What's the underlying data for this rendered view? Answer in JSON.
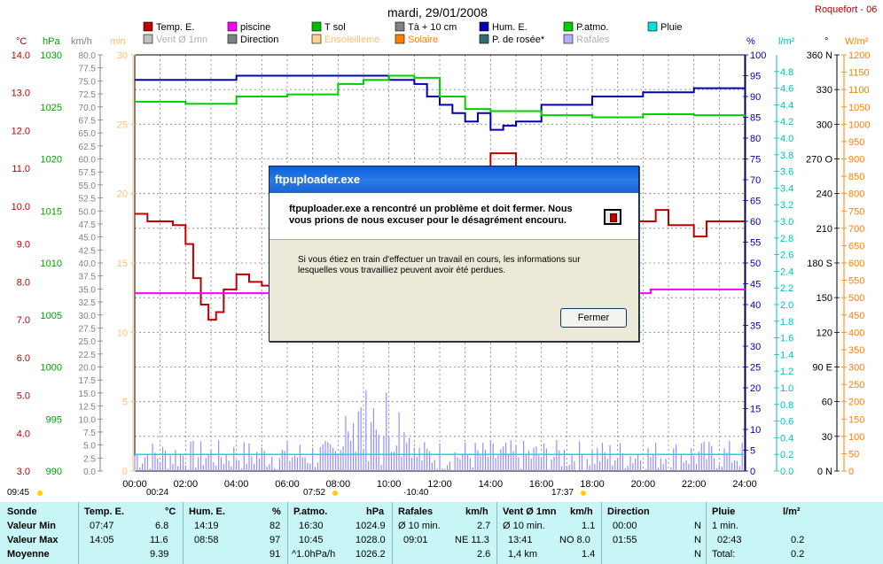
{
  "title": "mardi, 29/01/2008",
  "station": "Roquefort - 06",
  "colors": {
    "temp": "#c00000",
    "piscine": "#ff00ff",
    "tsol": "#00c000",
    "t10": "#808080",
    "hum": "#0000b0",
    "patm": "#00d000",
    "pluie": "#00e0e0",
    "vent": "#b0b0b0",
    "direction": "#808080",
    "ensol": "#ffd090",
    "solaire": "#ff8000",
    "rosee": "#2f6f6f",
    "rafales": "#a0a0ff"
  },
  "legend": [
    {
      "label": "Temp. E.",
      "color": "#c00000"
    },
    {
      "label": "piscine",
      "color": "#ff00ff"
    },
    {
      "label": "T sol",
      "color": "#00c000"
    },
    {
      "label": "Tà + 10 cm",
      "color": "#808080"
    },
    {
      "label": "Hum. E.",
      "color": "#0000b0"
    },
    {
      "label": "P.atmo.",
      "color": "#00d000"
    },
    {
      "label": "Pluie",
      "color": "#00e0e0"
    },
    {
      "label": "Vent Ø 1mn",
      "color": "#c0c0c0"
    },
    {
      "label": "Direction",
      "color": "#808080"
    },
    {
      "label": "Ensoleilleme",
      "color": "#ffd090"
    },
    {
      "label": "Solaire",
      "color": "#ff8000"
    },
    {
      "label": "P. de rosée*",
      "color": "#2f6f6f"
    },
    {
      "label": "Rafales",
      "color": "#b0b0ff"
    }
  ],
  "unit_labels": {
    "c": "°C",
    "hpa": "hPa",
    "kmh": "km/h",
    "min": "min",
    "pct": "%",
    "lm2": "l/m²",
    "deg": "°",
    "wm2": "W/m²"
  },
  "chart_data": {
    "type": "line",
    "xlabel": "",
    "x_ticks": [
      "00:00",
      "02:00",
      "04:00",
      "06:00",
      "08:00",
      "10:00",
      "12:00",
      "14:00",
      "16:00",
      "18:00",
      "20:00",
      "22:00",
      "24:00"
    ],
    "axes": {
      "temp_c": {
        "min": 3.0,
        "max": 14.0,
        "ticks": [
          "3.0",
          "4.0",
          "5.0",
          "6.0",
          "7.0",
          "8.0",
          "9.0",
          "10.0",
          "11.0",
          "12.0",
          "13.0",
          "14.0"
        ]
      },
      "pressure_hpa": {
        "min": 990,
        "max": 1030,
        "ticks": [
          "990",
          "995",
          "1000",
          "1005",
          "1010",
          "1015",
          "1020",
          "1025",
          "1030"
        ]
      },
      "wind_kmh": {
        "min": 0,
        "max": 80,
        "ticks": [
          "0.0",
          "2.5",
          "5.0",
          "7.5",
          "10.0",
          "12.5",
          "15.0",
          "17.5",
          "20.0",
          "22.5",
          "25.0",
          "27.5",
          "30.0",
          "32.5",
          "35.0",
          "37.5",
          "40.0",
          "42.5",
          "45.0",
          "47.5",
          "50.0",
          "52.5",
          "55.0",
          "57.5",
          "60.0",
          "62.5",
          "65.0",
          "67.5",
          "70.0",
          "72.5",
          "75.0",
          "77.5",
          "80.0"
        ]
      },
      "min": {
        "min": 0,
        "max": 30,
        "ticks": [
          "0",
          "5",
          "10",
          "15",
          "20",
          "25",
          "30"
        ]
      },
      "hum_pct": {
        "min": 0,
        "max": 100,
        "ticks": [
          "0",
          "5",
          "10",
          "15",
          "20",
          "25",
          "30",
          "35",
          "40",
          "45",
          "50",
          "55",
          "60",
          "65",
          "70",
          "75",
          "80",
          "85",
          "90",
          "95",
          "100"
        ]
      },
      "rain_lm2": {
        "min": 0,
        "max": 5,
        "ticks": [
          "0.0",
          "0.2",
          "0.4",
          "0.6",
          "0.8",
          "1.0",
          "1.2",
          "1.4",
          "1.6",
          "1.8",
          "2.0",
          "2.2",
          "2.4",
          "2.6",
          "2.8",
          "3.0",
          "3.2",
          "3.4",
          "3.6",
          "3.8",
          "4.0",
          "4.2",
          "4.4",
          "4.6",
          "4.8"
        ]
      },
      "dir_deg": {
        "min": 0,
        "max": 360,
        "ticks": [
          "0 N",
          "30",
          "60",
          "90 E",
          "120",
          "150",
          "180 S",
          "210",
          "240",
          "270 O",
          "300",
          "330",
          "360 N"
        ]
      },
      "solar_wm2": {
        "min": 0,
        "max": 1200,
        "ticks": [
          "0",
          "50",
          "100",
          "150",
          "200",
          "250",
          "300",
          "350",
          "400",
          "450",
          "500",
          "550",
          "600",
          "650",
          "700",
          "750",
          "800",
          "850",
          "900",
          "950",
          "1000",
          "1050",
          "1100",
          "1150",
          "1200"
        ]
      }
    },
    "series": [
      {
        "name": "Temp. E.",
        "axis": "temp_c",
        "x": [
          0,
          0.5,
          1.5,
          2.0,
          2.3,
          2.6,
          2.9,
          3.2,
          3.5,
          4.0,
          4.5,
          5.0,
          10.5,
          11.5,
          12.3,
          13.0,
          14.0,
          15.0,
          15.5,
          16.0,
          17.5,
          20.5,
          21.0,
          22.0,
          22.5,
          23.5,
          24.0
        ],
        "y": [
          9.8,
          9.6,
          9.5,
          9.0,
          8.1,
          7.4,
          7.0,
          7.2,
          7.8,
          8.2,
          8.0,
          7.9,
          9.5,
          10.2,
          10.6,
          11.0,
          11.4,
          11.0,
          10.2,
          9.8,
          9.6,
          9.9,
          9.5,
          9.2,
          9.6,
          9.6,
          9.6
        ]
      },
      {
        "name": "piscine",
        "axis": "temp_c",
        "x": [
          0,
          5.3,
          20.3,
          24.0
        ],
        "y": [
          7.7,
          7.7,
          7.8,
          7.8
        ]
      },
      {
        "name": "Hum. E.",
        "axis": "hum_pct",
        "x": [
          0,
          2,
          4,
          6,
          8,
          9,
          10,
          11,
          11.5,
          12,
          12.5,
          13,
          13.5,
          14,
          14.5,
          15,
          16,
          17,
          18,
          20,
          22,
          24
        ],
        "y": [
          94,
          94,
          95,
          95,
          95,
          95,
          94,
          93,
          90,
          88,
          86,
          84,
          86,
          82,
          83,
          84,
          88,
          88,
          90,
          91,
          92,
          92
        ]
      },
      {
        "name": "P.atmo.",
        "axis": "pressure_hpa",
        "x": [
          0,
          2,
          4,
          6,
          8,
          9,
          10,
          11,
          12,
          13,
          14,
          16,
          18,
          20,
          22,
          24
        ],
        "y": [
          1025.5,
          1025.3,
          1026.0,
          1026.2,
          1027.2,
          1027.6,
          1028.0,
          1027.8,
          1026.0,
          1024.8,
          1024.6,
          1024.2,
          1024.0,
          1024.3,
          1024.2,
          1024.0
        ]
      }
    ]
  },
  "sun": {
    "rise_left": "09:45",
    "set_left": "00:24",
    "noon": "07:52",
    "noon2": "·10:40",
    "set_right": "17:37"
  },
  "dialog": {
    "title": "ftpuploader.exe",
    "heading": "ftpuploader.exe a rencontré un problème et doit fermer. Nous vous prions de nous excuser pour le désagrément encouru.",
    "body": "Si vous étiez en train d'effectuer un travail en cours, les informations sur lesquelles vous travailliez peuvent avoir été perdues.",
    "button": "Fermer"
  },
  "summary": {
    "sonde": {
      "h": "Sonde",
      "r1": "Valeur Min",
      "r2": "Valeur Max",
      "r3": "Moyenne"
    },
    "temp": {
      "h": "Temp. E.",
      "u": "°C",
      "r1a": "07:47",
      "r1b": "6.8",
      "r2a": "14:05",
      "r2b": "11.6",
      "r3b": "9.39"
    },
    "hum": {
      "h": "Hum. E.",
      "u": "%",
      "r1a": "14:19",
      "r1b": "82",
      "r2a": "08:58",
      "r2b": "97",
      "r3b": "91"
    },
    "patm": {
      "h": "P.atmo.",
      "u": "hPa",
      "r1a": "16:30",
      "r1b": "1024.9",
      "r2a": "10:45",
      "r2b": "1028.0",
      "r3a": "^1.0hPa/h",
      "r3b": "1026.2"
    },
    "raf": {
      "h": "Rafales",
      "u": "km/h",
      "r1a": "Ø 10 min.",
      "r1b": "2.7",
      "r2a": "09:01",
      "r2b": "NE 11.3",
      "r3b": "2.6"
    },
    "vent": {
      "h": "Vent Ø 1mn",
      "u": "km/h",
      "r1a": "Ø 10 min.",
      "r1b": "1.1",
      "r2a": "13:41",
      "r2b": "NO 8.0",
      "r3a": "1,4 km",
      "r3b": "1.4"
    },
    "dir": {
      "h": "Direction",
      "r1a": "00:00",
      "r1b": "N",
      "r2a": "01:55",
      "r2b": "N",
      "r3b": "N"
    },
    "pluie": {
      "h": "Pluie",
      "u": "l/m²",
      "r1a": "1 min.",
      "r2a": "02:43",
      "r2b": "0.2",
      "r3a": "Total:",
      "r3b": "0.2"
    }
  }
}
